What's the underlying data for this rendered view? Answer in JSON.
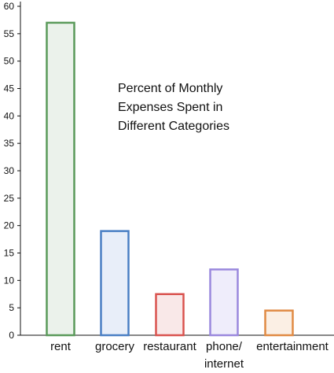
{
  "chart_data": {
    "type": "bar",
    "title_lines": [
      "Percent of Monthly",
      "Expenses Spent in",
      "Different Categories"
    ],
    "categories": [
      "rent",
      "grocery",
      "restaurant",
      "phone/\ninternet",
      "entertainment"
    ],
    "values": [
      57,
      19,
      7.5,
      12,
      4.5
    ],
    "ylim": [
      0,
      60
    ],
    "yticks": [
      0,
      5,
      10,
      15,
      20,
      25,
      30,
      35,
      40,
      45,
      50,
      55,
      60
    ],
    "xlabel": "",
    "ylabel": "",
    "grid": false,
    "colors": {
      "rent": {
        "stroke": "#5a9a5a",
        "fill": "#ebf2eb"
      },
      "grocery": {
        "stroke": "#4a7fc4",
        "fill": "#e8eef9"
      },
      "restaurant": {
        "stroke": "#d9534f",
        "fill": "#f9e8e8"
      },
      "phone/\ninternet": {
        "stroke": "#9a88dd",
        "fill": "#efedfb"
      },
      "entertainment": {
        "stroke": "#e08a43",
        "fill": "#fbefe4"
      }
    }
  }
}
